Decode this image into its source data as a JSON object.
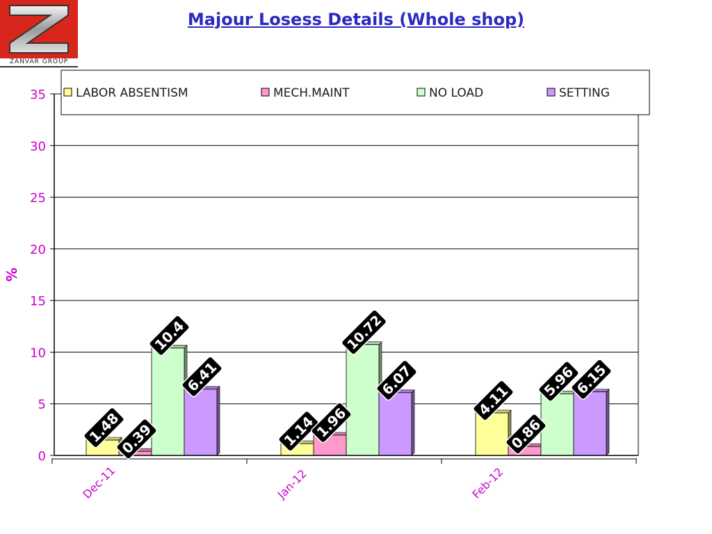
{
  "logo": {
    "text": "ZANVAR GROUP",
    "letter": "Z"
  },
  "chart_data": {
    "type": "bar",
    "title": "Majour Losess Details (Whole shop)",
    "xlabel": "",
    "ylabel": "%",
    "ylim": [
      0,
      35
    ],
    "yticks": [
      0,
      5,
      10,
      15,
      20,
      25,
      30,
      35
    ],
    "grid": true,
    "legend_position": "top",
    "categories": [
      "Dec-11",
      "Jan-12",
      "Feb-12"
    ],
    "series": [
      {
        "name": "LABOR ABSENTISM",
        "color": "#ffff99",
        "values": [
          1.48,
          1.14,
          4.11
        ],
        "labels": [
          "1.48",
          "1.14",
          "4.11"
        ]
      },
      {
        "name": "MECH.MAINT",
        "color": "#ff99cc",
        "values": [
          0.39,
          1.96,
          0.86
        ],
        "labels": [
          "0.39",
          "1.96",
          "0.86"
        ]
      },
      {
        "name": "NO LOAD",
        "color": "#ccffcc",
        "values": [
          10.4,
          10.72,
          5.96
        ],
        "labels": [
          "10.4",
          "10.72",
          "5.96"
        ]
      },
      {
        "name": "SETTING",
        "color": "#cc99ff",
        "values": [
          6.41,
          6.07,
          6.15
        ],
        "labels": [
          "6.41",
          "6.07",
          "6.15"
        ]
      }
    ],
    "colors": {
      "axis_text": "#cc00cc",
      "title": "#2a2ac2",
      "label_bg": "#000000",
      "label_text": "#ffffff"
    }
  }
}
